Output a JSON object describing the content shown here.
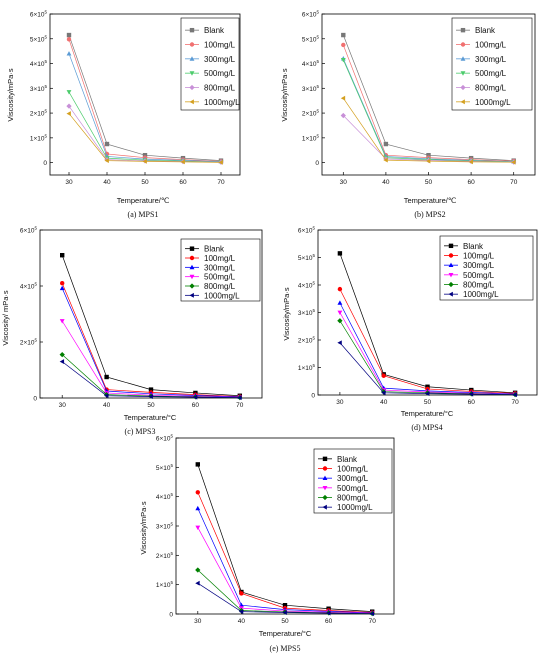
{
  "chart_data": [
    {
      "type": "line",
      "caption": "(a) MPS1",
      "xlabel": "Temperature/℃",
      "ylabel": "Viscosity/mPa·s",
      "x": [
        30,
        40,
        50,
        60,
        70
      ],
      "xticks": [
        "30",
        "40",
        "50",
        "60",
        "70"
      ],
      "ylim": [
        -50000,
        600000
      ],
      "yticks": [
        {
          "v": 0,
          "base": "0",
          "exp": ""
        },
        {
          "v": 100000,
          "base": "1×10",
          "exp": "5"
        },
        {
          "v": 200000,
          "base": "2×10",
          "exp": "5"
        },
        {
          "v": 300000,
          "base": "3×10",
          "exp": "5"
        },
        {
          "v": 400000,
          "base": "4×10",
          "exp": "5"
        },
        {
          "v": 500000,
          "base": "5×10",
          "exp": "5"
        },
        {
          "v": 600000,
          "base": "6×10",
          "exp": "5"
        }
      ],
      "legend_position": "top-right",
      "grid": false,
      "series": [
        {
          "name": "Blank",
          "color": "#777777",
          "marker": "square",
          "values": [
            515000,
            75000,
            30000,
            18000,
            8000
          ]
        },
        {
          "name": "100mg/L",
          "color": "#f07070",
          "marker": "circle",
          "values": [
            498000,
            35000,
            20000,
            12000,
            5000
          ]
        },
        {
          "name": "300mg/L",
          "color": "#5b9bd5",
          "marker": "triangle-up",
          "values": [
            440000,
            25000,
            14000,
            9000,
            4000
          ]
        },
        {
          "name": "500mg/L",
          "color": "#4ccc6c",
          "marker": "triangle-down",
          "values": [
            285000,
            18000,
            10000,
            6000,
            2000
          ]
        },
        {
          "name": "800mg/L",
          "color": "#c890d8",
          "marker": "diamond",
          "values": [
            228000,
            12000,
            7000,
            4000,
            1500
          ]
        },
        {
          "name": "1000mg/L",
          "color": "#d4a020",
          "marker": "triangle-left",
          "values": [
            198000,
            8000,
            5000,
            3000,
            1000
          ]
        }
      ]
    },
    {
      "type": "line",
      "caption": "(b) MPS2",
      "xlabel": "Temperature/℃",
      "ylabel": "Viscosity/mPa·s",
      "x": [
        30,
        40,
        50,
        60,
        70
      ],
      "xticks": [
        "30",
        "40",
        "50",
        "60",
        "70"
      ],
      "ylim": [
        -50000,
        600000
      ],
      "yticks": [
        {
          "v": 0,
          "base": "0",
          "exp": ""
        },
        {
          "v": 100000,
          "base": "1×10",
          "exp": "5"
        },
        {
          "v": 200000,
          "base": "2×10",
          "exp": "5"
        },
        {
          "v": 300000,
          "base": "3×10",
          "exp": "5"
        },
        {
          "v": 400000,
          "base": "4×10",
          "exp": "5"
        },
        {
          "v": 500000,
          "base": "5×10",
          "exp": "5"
        },
        {
          "v": 600000,
          "base": "6×10",
          "exp": "5"
        }
      ],
      "legend_position": "top-right",
      "grid": false,
      "series": [
        {
          "name": "Blank",
          "color": "#777777",
          "marker": "square",
          "values": [
            515000,
            75000,
            30000,
            18000,
            8000
          ]
        },
        {
          "name": "100mg/L",
          "color": "#f07070",
          "marker": "circle",
          "values": [
            475000,
            30000,
            20000,
            12000,
            6000
          ]
        },
        {
          "name": "300mg/L",
          "color": "#5b9bd5",
          "marker": "triangle-up",
          "values": [
            420000,
            25000,
            15000,
            9000,
            4000
          ]
        },
        {
          "name": "500mg/L",
          "color": "#4ccc6c",
          "marker": "triangle-down",
          "values": [
            415000,
            20000,
            12000,
            7000,
            3000
          ]
        },
        {
          "name": "800mg/L",
          "color": "#c890d8",
          "marker": "diamond",
          "values": [
            190000,
            15000,
            9000,
            5000,
            2000
          ]
        },
        {
          "name": "1000mg/L",
          "color": "#d4a020",
          "marker": "triangle-left",
          "values": [
            260000,
            10000,
            6000,
            3000,
            1500
          ]
        }
      ]
    },
    {
      "type": "line",
      "caption": "(c) MPS3",
      "xlabel": "Temperature/°C",
      "ylabel": "Viscosity/ mPa·s",
      "x": [
        30,
        40,
        50,
        60,
        70
      ],
      "xticks": [
        "30",
        "40",
        "50",
        "60",
        "70"
      ],
      "ylim": [
        0,
        600000
      ],
      "yticks": [
        {
          "v": 0,
          "base": "0",
          "exp": ""
        },
        {
          "v": 200000,
          "base": "2×10",
          "exp": "5"
        },
        {
          "v": 400000,
          "base": "4×10",
          "exp": "5"
        },
        {
          "v": 600000,
          "base": "6×10",
          "exp": "5"
        }
      ],
      "legend_position": "top-right",
      "grid": false,
      "series": [
        {
          "name": "Blank",
          "color": "#000000",
          "marker": "square",
          "values": [
            510000,
            75000,
            30000,
            18000,
            8000
          ]
        },
        {
          "name": "100mg/L",
          "color": "#ff0000",
          "marker": "circle",
          "values": [
            410000,
            30000,
            20000,
            12000,
            5000
          ]
        },
        {
          "name": "300mg/L",
          "color": "#0000ff",
          "marker": "triangle-up",
          "values": [
            392000,
            25000,
            15000,
            9000,
            4000
          ]
        },
        {
          "name": "500mg/L",
          "color": "#ff00ff",
          "marker": "triangle-down",
          "values": [
            275000,
            18000,
            10000,
            6000,
            2500
          ]
        },
        {
          "name": "800mg/L",
          "color": "#008000",
          "marker": "diamond",
          "values": [
            155000,
            12000,
            7000,
            4000,
            1500
          ]
        },
        {
          "name": "1000mg/L",
          "color": "#000080",
          "marker": "triangle-left",
          "values": [
            130000,
            8000,
            5000,
            3000,
            1000
          ]
        }
      ]
    },
    {
      "type": "line",
      "caption": "(d) MPS4",
      "xlabel": "Temperature/°C",
      "ylabel": "Viscosity/mPa·s",
      "x": [
        30,
        40,
        50,
        60,
        70
      ],
      "xticks": [
        "30",
        "40",
        "50",
        "60",
        "70"
      ],
      "ylim": [
        0,
        600000
      ],
      "yticks": [
        {
          "v": 0,
          "base": "0",
          "exp": ""
        },
        {
          "v": 100000,
          "base": "1×10",
          "exp": "5"
        },
        {
          "v": 200000,
          "base": "2×10",
          "exp": "5"
        },
        {
          "v": 300000,
          "base": "3×10",
          "exp": "5"
        },
        {
          "v": 400000,
          "base": "4×10",
          "exp": "5"
        },
        {
          "v": 500000,
          "base": "5×10",
          "exp": "5"
        },
        {
          "v": 600000,
          "base": "6×10",
          "exp": "5"
        }
      ],
      "legend_position": "top-right",
      "grid": false,
      "series": [
        {
          "name": "Blank",
          "color": "#000000",
          "marker": "square",
          "values": [
            515000,
            75000,
            30000,
            18000,
            8000
          ]
        },
        {
          "name": "100mg/L",
          "color": "#ff0000",
          "marker": "circle",
          "values": [
            385000,
            70000,
            22000,
            13000,
            6000
          ]
        },
        {
          "name": "300mg/L",
          "color": "#0000ff",
          "marker": "triangle-up",
          "values": [
            335000,
            25000,
            15000,
            9000,
            4000
          ]
        },
        {
          "name": "500mg/L",
          "color": "#ff00ff",
          "marker": "triangle-down",
          "values": [
            300000,
            18000,
            11000,
            6000,
            2500
          ]
        },
        {
          "name": "800mg/L",
          "color": "#008000",
          "marker": "diamond",
          "values": [
            270000,
            12000,
            8000,
            4000,
            1500
          ]
        },
        {
          "name": "1000mg/L",
          "color": "#000080",
          "marker": "triangle-left",
          "values": [
            190000,
            8000,
            5000,
            3000,
            1000
          ]
        }
      ]
    },
    {
      "type": "line",
      "caption": "(e) MPS5",
      "xlabel": "Temperature/°C",
      "ylabel": "Viscosity/mPa·s",
      "x": [
        30,
        40,
        50,
        60,
        70
      ],
      "xticks": [
        "30",
        "40",
        "50",
        "60",
        "70"
      ],
      "ylim": [
        0,
        600000
      ],
      "yticks": [
        {
          "v": 0,
          "base": "0",
          "exp": ""
        },
        {
          "v": 100000,
          "base": "1×10",
          "exp": "5"
        },
        {
          "v": 200000,
          "base": "2×10",
          "exp": "5"
        },
        {
          "v": 300000,
          "base": "3×10",
          "exp": "5"
        },
        {
          "v": 400000,
          "base": "4×10",
          "exp": "5"
        },
        {
          "v": 500000,
          "base": "5×10",
          "exp": "5"
        },
        {
          "v": 600000,
          "base": "6×10",
          "exp": "5"
        }
      ],
      "legend_position": "top-right",
      "grid": false,
      "series": [
        {
          "name": "Blank",
          "color": "#000000",
          "marker": "square",
          "values": [
            510000,
            75000,
            30000,
            18000,
            8000
          ]
        },
        {
          "name": "100mg/L",
          "color": "#ff0000",
          "marker": "circle",
          "values": [
            415000,
            70000,
            20000,
            12000,
            5000
          ]
        },
        {
          "name": "300mg/L",
          "color": "#0000ff",
          "marker": "triangle-up",
          "values": [
            360000,
            30000,
            15000,
            9000,
            4000
          ]
        },
        {
          "name": "500mg/L",
          "color": "#ff00ff",
          "marker": "triangle-down",
          "values": [
            295000,
            20000,
            10000,
            6000,
            2500
          ]
        },
        {
          "name": "800mg/L",
          "color": "#008000",
          "marker": "diamond",
          "values": [
            150000,
            12000,
            7000,
            4000,
            1500
          ]
        },
        {
          "name": "1000mg/L",
          "color": "#000080",
          "marker": "triangle-left",
          "values": [
            105000,
            8000,
            5000,
            3000,
            1000
          ]
        }
      ]
    }
  ]
}
